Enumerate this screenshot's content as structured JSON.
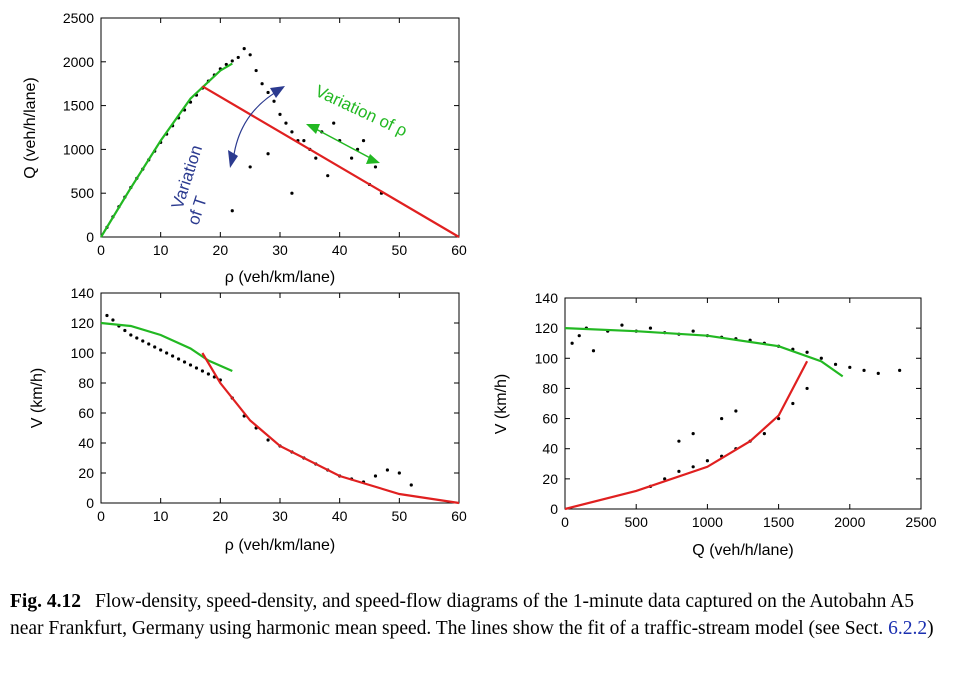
{
  "caption": {
    "label": "Fig. 4.12",
    "text_before_link": "Flow-density, speed-density, and speed-flow diagrams of the 1-minute data captured on the Autobahn A5 near Frankfurt, Germany using harmonic mean speed. The lines show the fit of a traffic-stream model (see Sect.",
    "link_text": "6.2.2",
    "text_after_link": ")"
  },
  "colors": {
    "fit_free": "#22b822",
    "fit_congested": "#e02020",
    "arrow_T": "#2b3a8f",
    "arrow_rho": "#22b822",
    "points": "#000000"
  },
  "chart_data": [
    {
      "id": "flow_density",
      "type": "scatter",
      "xlabel": "ρ (veh/km/lane)",
      "ylabel": "Q (veh/h/lane)",
      "xlim": [
        0,
        60
      ],
      "ylim": [
        0,
        2500
      ],
      "xticks": [
        0,
        10,
        20,
        30,
        40,
        50,
        60
      ],
      "yticks": [
        0,
        500,
        1000,
        1500,
        2000,
        2500
      ],
      "series": [
        {
          "kind": "points",
          "description_points": [
            [
              1,
              110
            ],
            [
              2,
              230
            ],
            [
              3,
              345
            ],
            [
              4,
              455
            ],
            [
              5,
              565
            ],
            [
              6,
              670
            ],
            [
              7,
              775
            ],
            [
              8,
              880
            ],
            [
              9,
              980
            ],
            [
              10,
              1080
            ],
            [
              11,
              1175
            ],
            [
              12,
              1270
            ],
            [
              13,
              1360
            ],
            [
              14,
              1450
            ],
            [
              15,
              1540
            ],
            [
              16,
              1620
            ],
            [
              17,
              1700
            ],
            [
              18,
              1780
            ],
            [
              19,
              1850
            ],
            [
              20,
              1920
            ],
            [
              21,
              1970
            ],
            [
              22,
              2010
            ],
            [
              23,
              2050
            ],
            [
              24,
              2150
            ],
            [
              25,
              2080
            ],
            [
              26,
              1900
            ],
            [
              27,
              1750
            ],
            [
              28,
              1650
            ],
            [
              29,
              1550
            ],
            [
              30,
              1400
            ],
            [
              31,
              1300
            ],
            [
              32,
              1200
            ],
            [
              33,
              1100
            ],
            [
              35,
              1000
            ],
            [
              36,
              900
            ],
            [
              37,
              1200
            ],
            [
              39,
              1300
            ],
            [
              40,
              1100
            ],
            [
              42,
              900
            ],
            [
              45,
              600
            ],
            [
              47,
              500
            ],
            [
              28,
              950
            ],
            [
              32,
              500
            ],
            [
              22,
              300
            ],
            [
              25,
              800
            ],
            [
              34,
              1100
            ],
            [
              38,
              700
            ],
            [
              43,
              1000
            ],
            [
              46,
              800
            ],
            [
              44,
              1100
            ]
          ]
        },
        {
          "kind": "line",
          "name": "",
          "points": [
            [
              0,
              0
            ],
            [
              5,
              560
            ],
            [
              10,
              1100
            ],
            [
              15,
              1580
            ],
            [
              20,
              1900
            ],
            [
              22,
              1980
            ]
          ]
        },
        {
          "kind": "line",
          "name": "",
          "points": [
            [
              17,
              1720
            ],
            [
              60,
              0
            ]
          ]
        }
      ],
      "annotations": [
        {
          "text_lines": [
            "Variation",
            "of T"
          ],
          "color": "#2b3a8f"
        },
        {
          "text": "Variation of ρ",
          "color": "#22b822"
        }
      ]
    },
    {
      "id": "speed_density",
      "type": "scatter",
      "xlabel": "ρ (veh/km/lane)",
      "ylabel": "V (km/h)",
      "xlim": [
        0,
        60
      ],
      "ylim": [
        0,
        140
      ],
      "xticks": [
        0,
        10,
        20,
        30,
        40,
        50,
        60
      ],
      "yticks": [
        0,
        20,
        40,
        60,
        80,
        100,
        120,
        140
      ],
      "series": [
        {
          "kind": "points",
          "description_points": [
            [
              1,
              125
            ],
            [
              2,
              122
            ],
            [
              3,
              118
            ],
            [
              4,
              115
            ],
            [
              5,
              112
            ],
            [
              6,
              110
            ],
            [
              7,
              108
            ],
            [
              8,
              106
            ],
            [
              9,
              104
            ],
            [
              10,
              102
            ],
            [
              11,
              100
            ],
            [
              12,
              98
            ],
            [
              13,
              96
            ],
            [
              14,
              94
            ],
            [
              15,
              92
            ],
            [
              16,
              90
            ],
            [
              17,
              88
            ],
            [
              18,
              86
            ],
            [
              19,
              84
            ],
            [
              20,
              82
            ],
            [
              22,
              70
            ],
            [
              24,
              58
            ],
            [
              26,
              50
            ],
            [
              28,
              42
            ],
            [
              30,
              38
            ],
            [
              32,
              34
            ],
            [
              34,
              30
            ],
            [
              36,
              26
            ],
            [
              38,
              22
            ],
            [
              40,
              18
            ],
            [
              42,
              16
            ],
            [
              44,
              14
            ],
            [
              46,
              18
            ],
            [
              48,
              22
            ],
            [
              50,
              20
            ],
            [
              52,
              12
            ]
          ]
        },
        {
          "kind": "line",
          "name": "",
          "points": [
            [
              0,
              120
            ],
            [
              5,
              118
            ],
            [
              10,
              112
            ],
            [
              15,
              103
            ],
            [
              18,
              95
            ],
            [
              22,
              88
            ]
          ]
        },
        {
          "kind": "line",
          "name": "",
          "points": [
            [
              17,
              100
            ],
            [
              20,
              80
            ],
            [
              25,
              55
            ],
            [
              30,
              38
            ],
            [
              40,
              18
            ],
            [
              50,
              6
            ],
            [
              60,
              0
            ]
          ]
        }
      ]
    },
    {
      "id": "speed_flow",
      "type": "scatter",
      "xlabel": "Q (veh/h/lane)",
      "ylabel": "V (km/h)",
      "xlim": [
        0,
        2500
      ],
      "ylim": [
        0,
        140
      ],
      "xticks": [
        0,
        500,
        1000,
        1500,
        2000,
        2500
      ],
      "yticks": [
        0,
        20,
        40,
        60,
        80,
        100,
        120,
        140
      ],
      "series": [
        {
          "kind": "points",
          "description_points": [
            [
              50,
              110
            ],
            [
              100,
              115
            ],
            [
              150,
              120
            ],
            [
              200,
              105
            ],
            [
              300,
              118
            ],
            [
              400,
              122
            ],
            [
              500,
              118
            ],
            [
              600,
              120
            ],
            [
              700,
              117
            ],
            [
              800,
              116
            ],
            [
              900,
              118
            ],
            [
              1000,
              115
            ],
            [
              1100,
              114
            ],
            [
              1200,
              113
            ],
            [
              1300,
              112
            ],
            [
              1400,
              110
            ],
            [
              1500,
              108
            ],
            [
              1600,
              106
            ],
            [
              1700,
              104
            ],
            [
              1800,
              100
            ],
            [
              1900,
              96
            ],
            [
              2000,
              94
            ],
            [
              2100,
              92
            ],
            [
              2200,
              90
            ],
            [
              2350,
              92
            ],
            [
              600,
              15
            ],
            [
              700,
              20
            ],
            [
              800,
              25
            ],
            [
              900,
              28
            ],
            [
              1000,
              32
            ],
            [
              1100,
              35
            ],
            [
              1200,
              40
            ],
            [
              1300,
              45
            ],
            [
              1400,
              50
            ],
            [
              1500,
              60
            ],
            [
              1600,
              70
            ],
            [
              1700,
              80
            ],
            [
              800,
              45
            ],
            [
              900,
              50
            ],
            [
              1100,
              60
            ],
            [
              1200,
              65
            ]
          ]
        },
        {
          "kind": "line",
          "name": "",
          "points": [
            [
              0,
              120
            ],
            [
              500,
              118
            ],
            [
              1000,
              115
            ],
            [
              1500,
              108
            ],
            [
              1800,
              98
            ],
            [
              1950,
              88
            ]
          ]
        },
        {
          "kind": "line",
          "name": "",
          "points": [
            [
              0,
              0
            ],
            [
              500,
              12
            ],
            [
              1000,
              28
            ],
            [
              1300,
              45
            ],
            [
              1500,
              62
            ],
            [
              1700,
              98
            ]
          ]
        }
      ]
    }
  ]
}
